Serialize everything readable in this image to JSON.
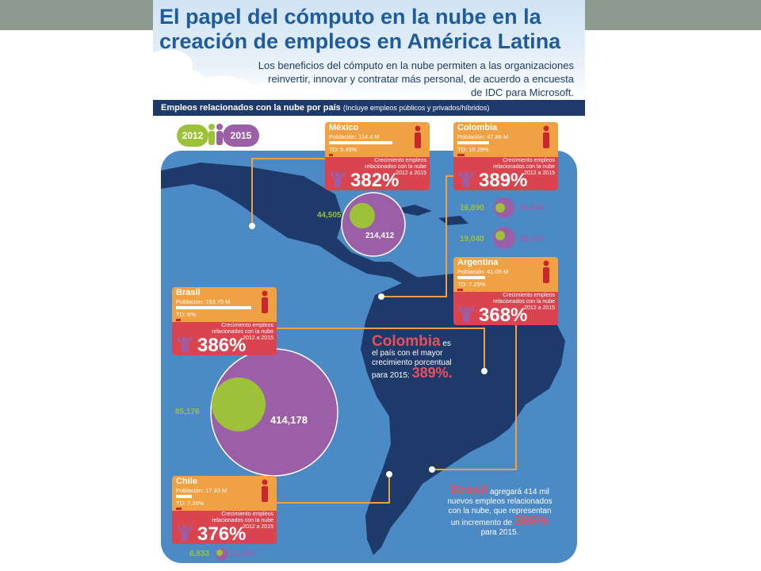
{
  "header": {
    "title_line1": "El papel del cómputo en la nube en la",
    "title_line2": "creación de empleos en América Latina",
    "subtitle_line1": "Los beneficios del cómputo en la nube permiten a las organizaciones",
    "subtitle_line2": "reinvertir, innovar y contratar más personal, de acuerdo a encuesta",
    "subtitle_line3": "de IDC para Microsoft."
  },
  "banner": {
    "main": "Empleos relacionados con la nube por país",
    "note": "(Incluye empleos públicos y privados/híbridos)"
  },
  "legend": {
    "year_a": "2012",
    "year_b": "2015"
  },
  "colors": {
    "accent_green": "#9dc23a",
    "accent_purple": "#9b5fa8",
    "card_orange": "#f0a143",
    "card_red": "#d9444f",
    "ocean": "#4c8ac6",
    "land": "#1e3a6b"
  },
  "countries": {
    "mexico": {
      "name": "México",
      "population": "Población: 114.4 M",
      "td": "TD: 5.45%",
      "growth_label": "Crecimiento empleos relacionados con la nube 2012 a 2015",
      "growth": "382%",
      "jobs_2012": "44,505",
      "jobs_2015": "214,412"
    },
    "colombia": {
      "name": "Colombia",
      "population": "Población: 47.86 M",
      "td": "TD: 10.29%",
      "growth_label": "Crecimiento empleos relacionados con la nube 2012 a 2015",
      "growth": "389%",
      "jobs_2012": "16,890",
      "jobs_2015": "82,649"
    },
    "argentina": {
      "name": "Argentina",
      "population": "Población: 41.09 M",
      "td": "TD: 7.25%",
      "growth_label": "Crecimiento empleos relacionados con la nube 2012 a 2015",
      "growth": "368%",
      "jobs_2012": "19,040",
      "jobs_2015": "89,104"
    },
    "brasil": {
      "name": "Brasil",
      "population": "Población: 193.75 M",
      "td": "TD: 6%",
      "growth_label": "Crecimiento empleos relacionados con la nube 2012 a 2015",
      "growth": "386%",
      "jobs_2012": "85,176",
      "jobs_2015": "414,178"
    },
    "chile": {
      "name": "Chile",
      "population": "Población: 17.33 M",
      "td": "TD: 7.35%",
      "growth_label": "Crecimiento empleos relacionados con la nube 2012 a 2015",
      "growth": "376%",
      "jobs_2012": "6,833",
      "jobs_2015": "32,545"
    }
  },
  "notes": {
    "colombia_name": "Colombia",
    "colombia_text_a": "es",
    "colombia_text_b": "el país con el mayor",
    "colombia_text_c": "crecimiento porcentual",
    "colombia_text_d": "para 2015:",
    "colombia_pct": "389%.",
    "brasil_name": "Brasil",
    "brasil_text_a": "agregará 414 mil",
    "brasil_text_b": "nuevos empleos relacionados",
    "brasil_text_c": "con la nube, que representan",
    "brasil_text_d": "un incremento de",
    "brasil_pct": "386%",
    "brasil_text_e": "para 2015."
  }
}
